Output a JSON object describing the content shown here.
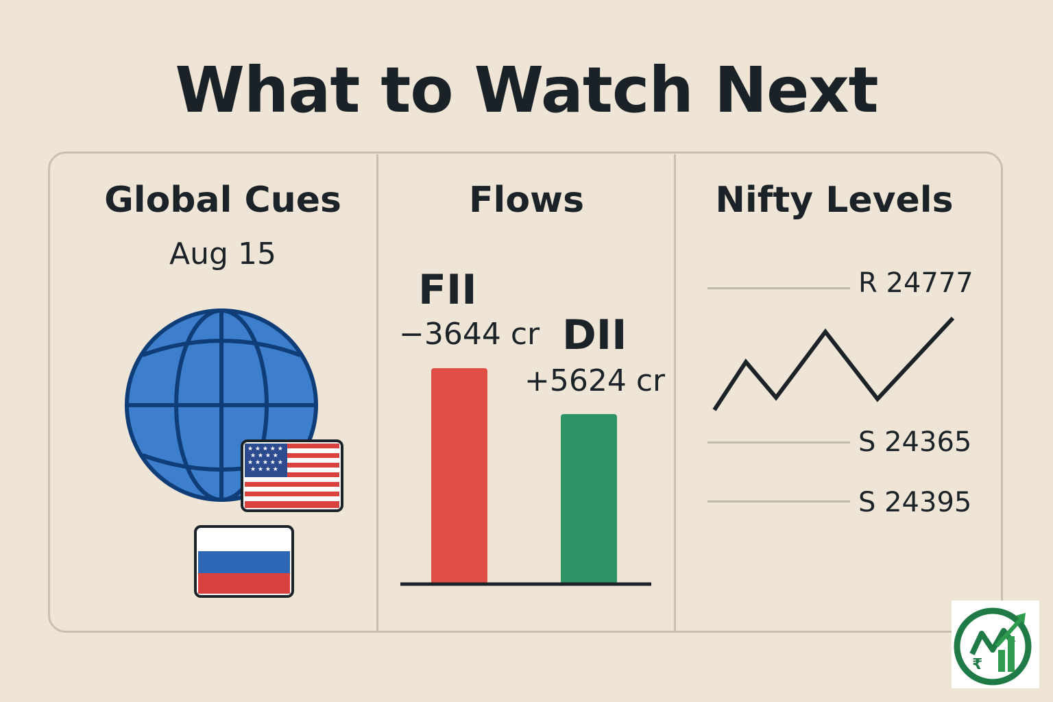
{
  "title": "What to Watch Next",
  "global_cues": {
    "heading": "Global Cues",
    "date": "Aug 15",
    "icons": [
      "globe-icon",
      "us-flag-icon",
      "russia-flag-icon"
    ],
    "colors": {
      "globe": "#3d7fcc",
      "globe_outline": "#0e3d78"
    }
  },
  "flows": {
    "heading": "Flows",
    "fii": {
      "label": "FII",
      "value_text": "−3644 cr",
      "value": -3644,
      "color": "#e04f47"
    },
    "dii": {
      "label": "DII",
      "value_text": "+5624 cr",
      "value": 5624,
      "color": "#2e9468"
    }
  },
  "nifty_levels": {
    "heading": "Nifty Levels",
    "resistance": "R 24777",
    "support_1": "S 24365",
    "support_2": "S 24395"
  },
  "logo": {
    "icon": "brand-logo-icon",
    "colors": {
      "ring": "#1f7a45",
      "arrow": "#2f9b4f"
    }
  }
}
